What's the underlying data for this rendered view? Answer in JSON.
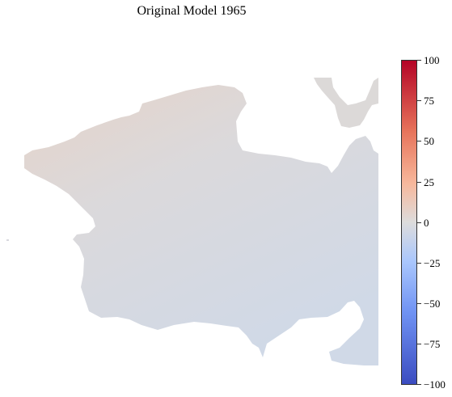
{
  "title": "Original Model 1965",
  "colorbar": {
    "ticks": [
      "100",
      "75",
      "50",
      "25",
      "0",
      "−25",
      "−50",
      "−75",
      "−100"
    ],
    "range": [
      -100,
      100
    ],
    "colormap": "coolwarm",
    "colors": {
      "high": "#b40426",
      "mid": "#dddcdc",
      "low": "#3b4cc0"
    }
  },
  "map": {
    "fill_colors": {
      "north_west": "#e3d5cc",
      "center": "#dbd9dc",
      "south": "#d2d9e6"
    }
  }
}
